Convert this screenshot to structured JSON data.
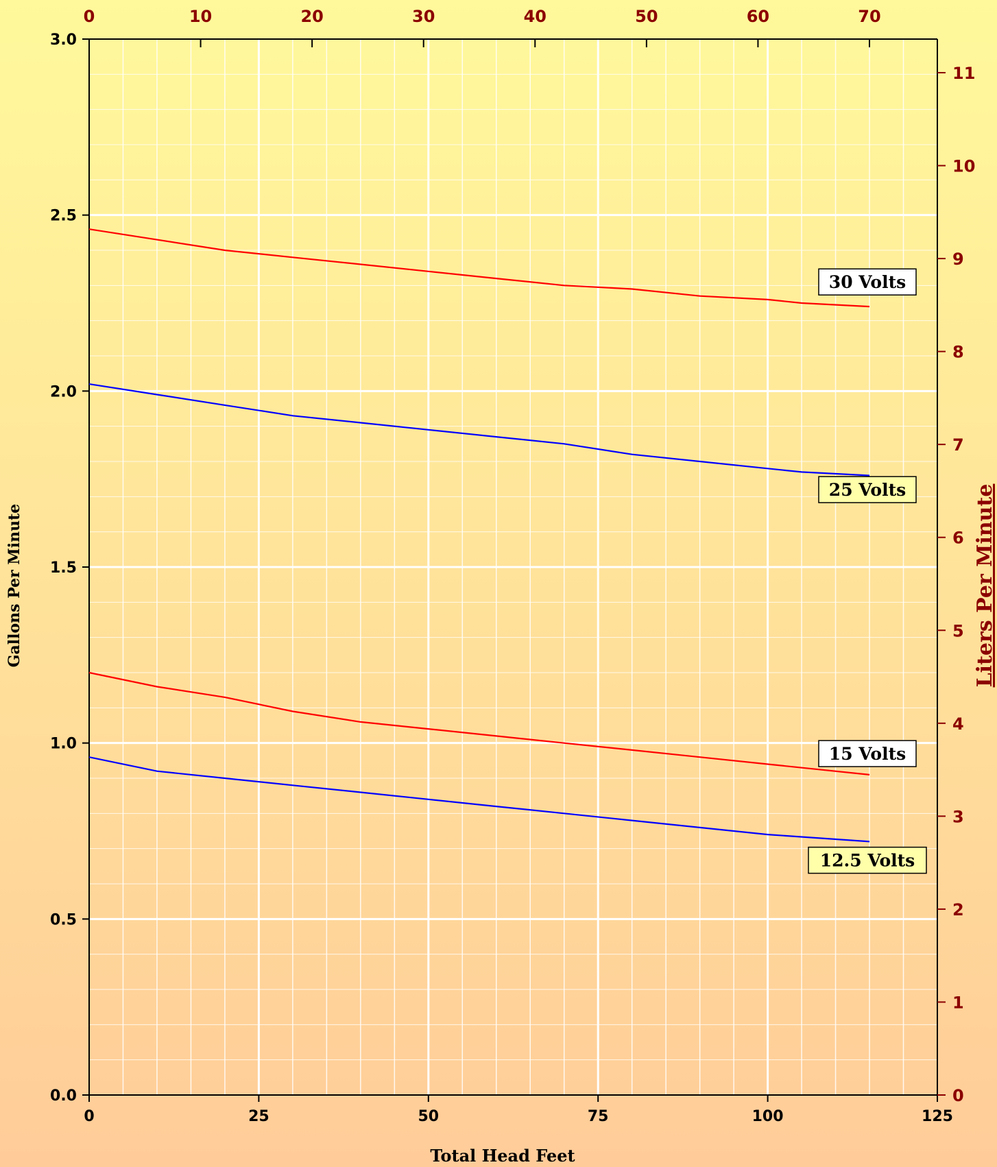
{
  "chart_data": {
    "type": "line",
    "xlabel": "Total Head Feet",
    "ylabel": "Gallons Per Minute",
    "ylabel_right": "Liters Per Minute",
    "xlim": [
      0,
      125
    ],
    "ylim": [
      0,
      3.0
    ],
    "x_ticks": [
      0,
      25,
      50,
      75,
      100,
      125
    ],
    "y_ticks": [
      "0.0",
      "0.5",
      "1.0",
      "1.5",
      "2.0",
      "2.5",
      "3.0"
    ],
    "x_top_ticks": [
      0,
      10,
      20,
      30,
      40,
      50,
      60,
      70
    ],
    "y_right_ticks": [
      0,
      1,
      2,
      3,
      4,
      5,
      6,
      7,
      8,
      9,
      10,
      11
    ],
    "grid": true,
    "series": [
      {
        "name": "30 Volts",
        "color": "#FF0000",
        "points": [
          [
            0,
            2.46
          ],
          [
            10,
            2.43
          ],
          [
            20,
            2.4
          ],
          [
            30,
            2.38
          ],
          [
            40,
            2.36
          ],
          [
            50,
            2.34
          ],
          [
            60,
            2.32
          ],
          [
            70,
            2.3
          ],
          [
            80,
            2.29
          ],
          [
            90,
            2.27
          ],
          [
            100,
            2.26
          ],
          [
            105,
            2.25
          ],
          [
            115,
            2.24
          ]
        ]
      },
      {
        "name": "25 Volts",
        "color": "#0000FF",
        "points": [
          [
            0,
            2.02
          ],
          [
            10,
            1.99
          ],
          [
            20,
            1.96
          ],
          [
            30,
            1.93
          ],
          [
            40,
            1.91
          ],
          [
            50,
            1.89
          ],
          [
            60,
            1.87
          ],
          [
            70,
            1.85
          ],
          [
            80,
            1.82
          ],
          [
            90,
            1.8
          ],
          [
            100,
            1.78
          ],
          [
            105,
            1.77
          ],
          [
            115,
            1.76
          ]
        ]
      },
      {
        "name": "15 Volts",
        "color": "#FF0000",
        "points": [
          [
            0,
            1.2
          ],
          [
            10,
            1.16
          ],
          [
            20,
            1.13
          ],
          [
            30,
            1.09
          ],
          [
            40,
            1.06
          ],
          [
            50,
            1.04
          ],
          [
            60,
            1.02
          ],
          [
            70,
            1.0
          ],
          [
            80,
            0.98
          ],
          [
            90,
            0.96
          ],
          [
            100,
            0.94
          ],
          [
            115,
            0.91
          ]
        ]
      },
      {
        "name": "12.5 Volts",
        "color": "#0000FF",
        "points": [
          [
            0,
            0.96
          ],
          [
            10,
            0.92
          ],
          [
            20,
            0.9
          ],
          [
            30,
            0.88
          ],
          [
            40,
            0.86
          ],
          [
            50,
            0.84
          ],
          [
            60,
            0.82
          ],
          [
            70,
            0.8
          ],
          [
            80,
            0.78
          ],
          [
            90,
            0.76
          ],
          [
            100,
            0.74
          ],
          [
            115,
            0.72
          ]
        ]
      }
    ]
  }
}
